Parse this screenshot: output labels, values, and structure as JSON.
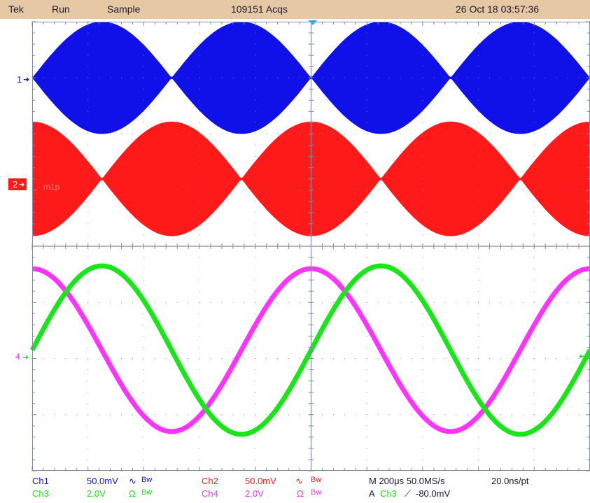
{
  "header": {
    "brand": "Tek",
    "run_state": "Run",
    "acq_mode": "Sample",
    "acquisitions": "109151 Acqs",
    "datetime": "26 Oct 18 03:57:36"
  },
  "colors": {
    "ch1": "#1010e8",
    "ch2": "#ff1a1a",
    "ch3": "#19e619",
    "ch4": "#ff33ff",
    "grid": "#7f8aa6",
    "trigger_marker": "#33a8e8",
    "header_bg": "#e6c9a4",
    "readout_label": "#1a1a2e"
  },
  "markers": {
    "ch1": "1",
    "ch2": "2",
    "ch34": "4",
    "ch2_overlay": "m1p"
  },
  "readouts": {
    "ch1": {
      "label": "Ch1",
      "scale": "50.0mV",
      "coupling_icon": "∿",
      "bw": "Bw"
    },
    "ch2": {
      "label": "Ch2",
      "scale": "50.0mV",
      "coupling_icon": "∿",
      "bw": "Bw"
    },
    "ch3": {
      "label": "Ch3",
      "scale": "2.0V",
      "coupling_icon": "Ω",
      "bw": "Bw"
    },
    "ch4": {
      "label": "Ch4",
      "scale": "2.0V",
      "coupling_icon": "Ω",
      "bw": "Bw"
    },
    "timebase": "M 200μs 50.0MS/s",
    "resolution": "20.0ns/pt",
    "trigger": {
      "prefix": "A",
      "source": "Ch3",
      "slope_icon": "⟋",
      "level": "-80.0mV"
    }
  },
  "chart_data": {
    "type": "line",
    "grid": {
      "divisions_x": 10,
      "divisions_y": 8
    },
    "series": [
      {
        "channel": "Ch1",
        "kind": "am-envelope",
        "envelope_peak_divs": 1.0,
        "envelope_periods": 4,
        "envelope_phase": "null-at-start"
      },
      {
        "channel": "Ch2",
        "kind": "am-envelope",
        "envelope_peak_divs": 1.0,
        "envelope_periods": 4,
        "envelope_phase": "peak-at-start"
      },
      {
        "channel": "Ch3",
        "kind": "sine",
        "amplitude_divs": 1.5,
        "periods": 2.0,
        "phase": "rising-zero-at-start"
      },
      {
        "channel": "Ch4",
        "kind": "sine",
        "amplitude_divs": 1.45,
        "periods": 2.0,
        "phase": "max-at-start"
      }
    ]
  }
}
